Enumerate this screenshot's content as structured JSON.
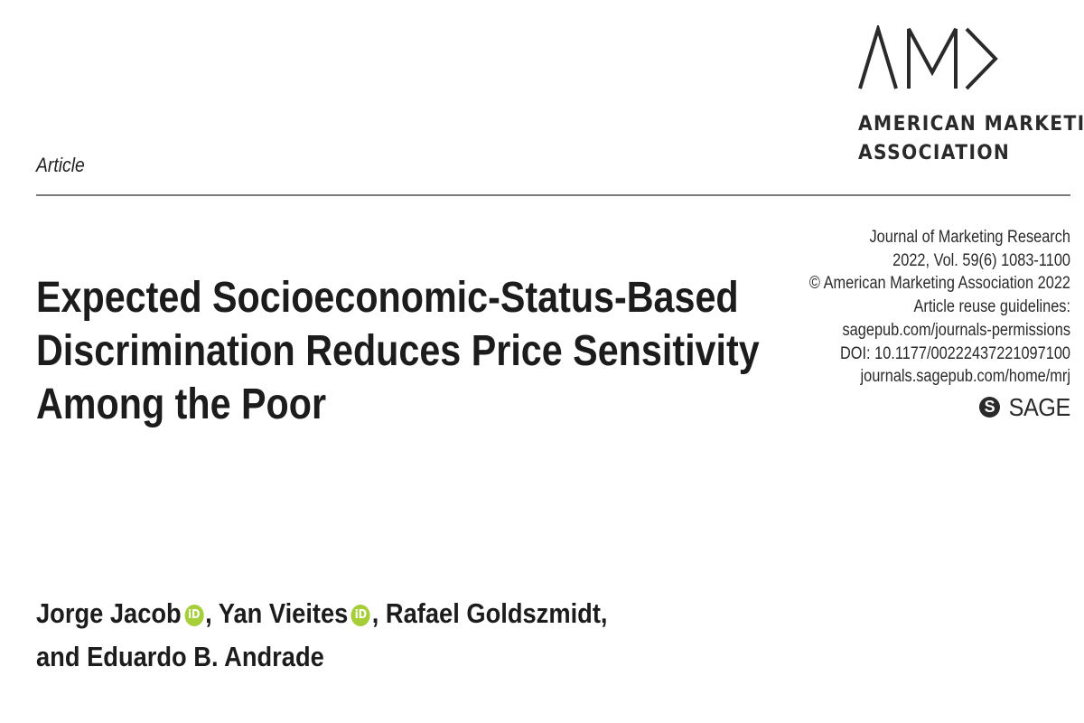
{
  "logo": {
    "mark_text": "AMA",
    "name_lines": [
      "AMERICAN MARKETING",
      "ASSOCIATION"
    ]
  },
  "article_label": "Article",
  "title_lines": [
    "Expected Socioeconomic-Status-Based",
    "Discrimination Reduces Price Sensitivity",
    "Among the Poor"
  ],
  "journal_info": [
    "Journal of Marketing Research",
    "2022, Vol. 59(6) 1083-1100",
    "© American Marketing Association 2022",
    "Article reuse guidelines:",
    "sagepub.com/journals-permissions",
    "DOI: 10.1177/00222437221097100",
    "journals.sagepub.com/home/mrj"
  ],
  "publisher": {
    "s_letter": "S",
    "name": "SAGE"
  },
  "authors": {
    "line1": [
      {
        "name": "Jorge Jacob",
        "orcid": true,
        "sep": ", "
      },
      {
        "name": "Yan Vieites",
        "orcid": true,
        "sep": ", "
      },
      {
        "name": "Rafael Goldszmidt,",
        "orcid": false,
        "sep": ""
      }
    ],
    "line2": "and Eduardo B. Andrade"
  },
  "orcid_label": "iD",
  "colors": {
    "orcid": "#a6ce39",
    "text": "#1c1c1c",
    "rule": "#7a7a7a"
  },
  "icons": [
    "ama-logo-icon",
    "orcid-icon",
    "sage-logo-icon"
  ]
}
